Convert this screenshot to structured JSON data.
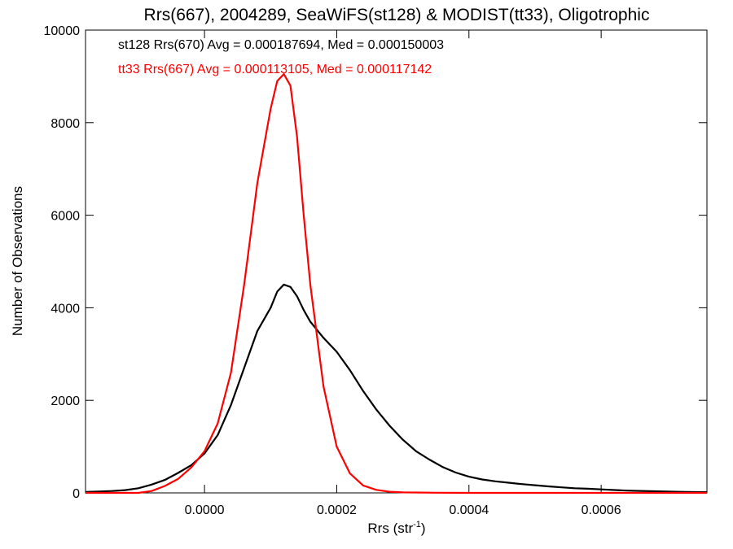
{
  "chart_data": {
    "type": "line",
    "title": "Rrs(667), 2004289, SeaWiFS(st128) & MODIST(tt33), Oligotrophic",
    "xlabel_main": "Rrs (str",
    "xlabel_sup": "-1",
    "xlabel_close": ")",
    "ylabel": "Number of Observations",
    "xlim": [
      -0.00018,
      0.00076
    ],
    "ylim": [
      0,
      10000
    ],
    "x_ticks": [
      0.0,
      0.0002,
      0.0004,
      0.0006
    ],
    "x_tick_labels": [
      "0.0000",
      "0.0002",
      "0.0004",
      "0.0006"
    ],
    "y_ticks": [
      0,
      2000,
      4000,
      6000,
      8000,
      10000
    ],
    "y_tick_labels": [
      "0",
      "2000",
      "4000",
      "6000",
      "8000",
      "10000"
    ],
    "grid": false,
    "annotations": [
      {
        "text": "st128 Rrs(670) Avg = 0.000187694, Med = 0.000150003",
        "color": "#000000"
      },
      {
        "text": "tt33 Rrs(667) Avg = 0.000113105, Med = 0.000117142",
        "color": "#ff0000"
      }
    ],
    "series": [
      {
        "color": "#000000",
        "x": [
          -0.00018,
          -0.00016,
          -0.00014,
          -0.00012,
          -0.0001,
          -8e-05,
          -6e-05,
          -4e-05,
          -2e-05,
          0.0,
          2e-05,
          4e-05,
          6e-05,
          8e-05,
          0.0001,
          0.00011,
          0.00012,
          0.00013,
          0.00014,
          0.00015,
          0.00016,
          0.00018,
          0.0002,
          0.00022,
          0.00024,
          0.00026,
          0.00028,
          0.0003,
          0.00032,
          0.00034,
          0.00036,
          0.00038,
          0.0004,
          0.00042,
          0.00044,
          0.00046,
          0.00048,
          0.0005,
          0.00052,
          0.00054,
          0.00056,
          0.00058,
          0.0006,
          0.00062,
          0.00064,
          0.00066,
          0.00068,
          0.0007,
          0.00072,
          0.00074,
          0.00076
        ],
        "y": [
          20,
          30,
          40,
          60,
          100,
          180,
          280,
          430,
          600,
          850,
          1250,
          1900,
          2700,
          3500,
          4000,
          4350,
          4500,
          4450,
          4250,
          3950,
          3700,
          3350,
          3050,
          2650,
          2200,
          1800,
          1450,
          1150,
          900,
          720,
          560,
          440,
          350,
          290,
          250,
          220,
          190,
          165,
          140,
          120,
          100,
          90,
          75,
          62,
          50,
          42,
          35,
          28,
          22,
          18,
          15
        ]
      },
      {
        "color": "#ff0000",
        "x": [
          -0.00018,
          -0.0001,
          -8e-05,
          -6e-05,
          -4e-05,
          -2e-05,
          0.0,
          2e-05,
          4e-05,
          6e-05,
          8e-05,
          0.0001,
          0.00011,
          0.00012,
          0.00013,
          0.00014,
          0.00015,
          0.00016,
          0.00018,
          0.0002,
          0.00022,
          0.00024,
          0.00026,
          0.00028,
          0.0003,
          0.00035,
          0.0004,
          0.00076
        ],
        "y": [
          0,
          0,
          40,
          150,
          300,
          550,
          900,
          1500,
          2600,
          4500,
          6700,
          8300,
          8900,
          9050,
          8800,
          7700,
          6000,
          4500,
          2300,
          1000,
          420,
          160,
          65,
          25,
          10,
          3,
          0,
          0
        ]
      }
    ]
  }
}
